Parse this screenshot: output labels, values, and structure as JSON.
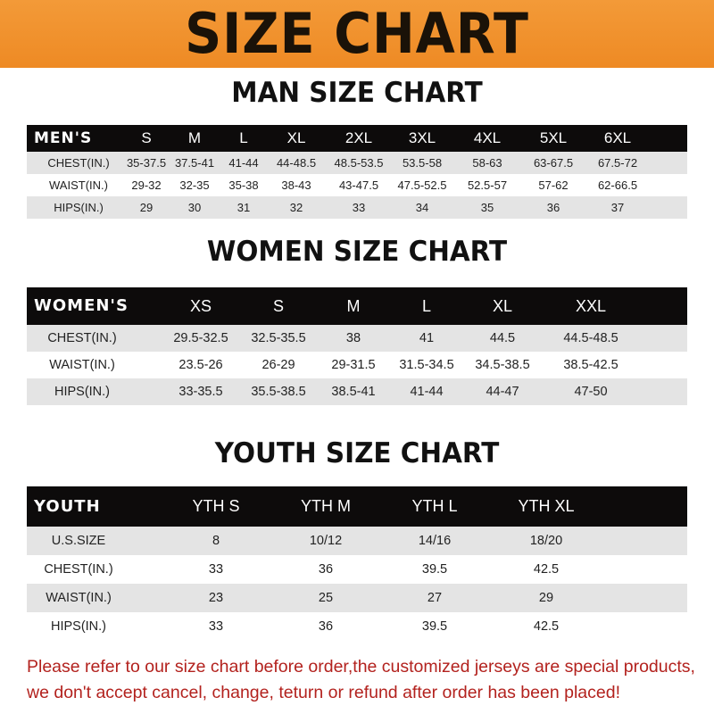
{
  "banner": {
    "title": "SIZE CHART",
    "color": "#f0902c"
  },
  "tables": [
    {
      "title": "MAN SIZE CHART",
      "header": [
        "MEN'S",
        "S",
        "M",
        "L",
        "XL",
        "2XL",
        "3XL",
        "4XL",
        "5XL",
        "6XL"
      ],
      "rows": [
        [
          "CHEST(IN.)",
          "35-37.5",
          "37.5-41",
          "41-44",
          "44-48.5",
          "48.5-53.5",
          "53.5-58",
          "58-63",
          "63-67.5",
          "67.5-72"
        ],
        [
          "WAIST(IN.)",
          "29-32",
          "32-35",
          "35-38",
          "38-43",
          "43-47.5",
          "47.5-52.5",
          "52.5-57",
          "57-62",
          "62-66.5"
        ],
        [
          "HIPS(IN.)",
          "29",
          "30",
          "31",
          "32",
          "33",
          "34",
          "35",
          "36",
          "37"
        ]
      ]
    },
    {
      "title": "WOMEN SIZE CHART",
      "header": [
        "WOMEN'S",
        "XS",
        "S",
        "M",
        "L",
        "XL",
        "XXL"
      ],
      "rows": [
        [
          "CHEST(IN.)",
          "29.5-32.5",
          "32.5-35.5",
          "38",
          "41",
          "44.5",
          "44.5-48.5"
        ],
        [
          "WAIST(IN.)",
          "23.5-26",
          "26-29",
          "29-31.5",
          "31.5-34.5",
          "34.5-38.5",
          "38.5-42.5"
        ],
        [
          "HIPS(IN.)",
          "33-35.5",
          "35.5-38.5",
          "38.5-41",
          "41-44",
          "44-47",
          "47-50"
        ]
      ]
    },
    {
      "title": "YOUTH SIZE CHART",
      "header": [
        "YOUTH",
        "YTH S",
        "YTH M",
        "YTH L",
        "YTH XL"
      ],
      "rows": [
        [
          "U.S.SIZE",
          "8",
          "10/12",
          "14/16",
          "18/20"
        ],
        [
          "CHEST(IN.)",
          "33",
          "36",
          "39.5",
          "42.5"
        ],
        [
          "WAIST(IN.)",
          "23",
          "25",
          "27",
          "29"
        ],
        [
          "HIPS(IN.)",
          "33",
          "36",
          "39.5",
          "42.5"
        ]
      ]
    }
  ],
  "notice": {
    "line1": "Please refer to our size chart before order,the customized jerseys are special products,",
    "line2": "we don't accept cancel, change, teturn or refund after order has been placed!",
    "color": "#b3221e"
  }
}
